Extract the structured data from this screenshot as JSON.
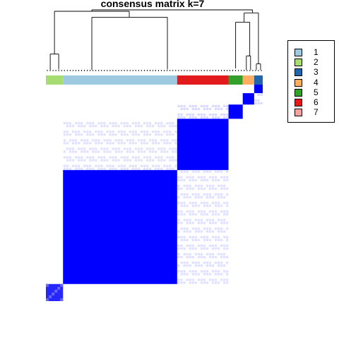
{
  "chart_data": {
    "type": "heatmap",
    "title": "consensus matrix k=7",
    "xlabel": "",
    "ylabel": "",
    "cluster_order": [
      "2",
      "1",
      "6",
      "5",
      "4",
      "3"
    ],
    "cluster_sizes": [
      6,
      40,
      18,
      5,
      4,
      3
    ],
    "annotation_colors": {
      "1": "#9ECAE1",
      "2": "#A6DC72",
      "3": "#2166AC",
      "4": "#FDAE61",
      "5": "#33A02C",
      "6": "#E31A1C",
      "7": "#F4A3A3"
    },
    "within_cluster_consensus": [
      0.85,
      1.0,
      1.0,
      1.0,
      1.0,
      1.0
    ],
    "cross_cluster_consensus": [
      {
        "rows": "1",
        "cols": "6",
        "value": 0.12
      },
      {
        "rows": "6",
        "cols": "1",
        "value": 0.12
      },
      {
        "rows": "5",
        "cols": "6",
        "value": 0.15
      },
      {
        "rows": "4",
        "cols": "3",
        "value": 0.15
      }
    ],
    "color_scale": {
      "low": "#FFFFFF",
      "high": "#0000FF",
      "range": [
        0,
        1
      ]
    },
    "legend": {
      "position": "right",
      "entries": [
        {
          "label": "1",
          "color": "#9ECAE1"
        },
        {
          "label": "2",
          "color": "#A6DC72"
        },
        {
          "label": "3",
          "color": "#2166AC"
        },
        {
          "label": "4",
          "color": "#FDAE61"
        },
        {
          "label": "5",
          "color": "#33A02C"
        },
        {
          "label": "6",
          "color": "#E31A1C"
        },
        {
          "label": "7",
          "color": "#F4A3A3"
        }
      ]
    },
    "dendrogram": true,
    "grid": false
  }
}
